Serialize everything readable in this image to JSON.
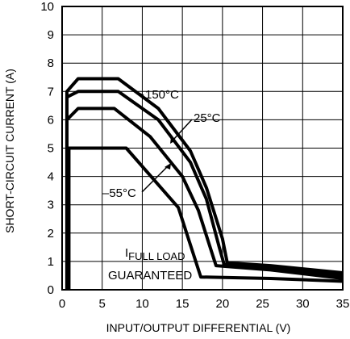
{
  "chart_data": {
    "type": "line",
    "title": "",
    "xlabel": "INPUT/OUTPUT DIFFERENTIAL (V)",
    "ylabel": "SHORT-CIRCUIT CURRENT (A)",
    "xlim": [
      0,
      35
    ],
    "ylim": [
      0,
      10
    ],
    "xticks": [
      "0",
      "5",
      "10",
      "15",
      "20",
      "25",
      "30",
      "35"
    ],
    "yticks": [
      "0",
      "1",
      "2",
      "3",
      "4",
      "5",
      "6",
      "7",
      "8",
      "9",
      "10"
    ],
    "grid": true,
    "series": [
      {
        "name": "150°C",
        "x": [
          0.6,
          0.6,
          2.0,
          7.0,
          12.0,
          16.0,
          18.0,
          20.0,
          20.6,
          26,
          35
        ],
        "y": [
          0,
          7.0,
          7.45,
          7.45,
          6.4,
          4.9,
          3.6,
          1.8,
          0.95,
          0.85,
          0.6
        ]
      },
      {
        "name": "25°C",
        "x": [
          0.6,
          0.6,
          2.0,
          7.0,
          12.0,
          16.0,
          18.0,
          19.6,
          20.2,
          26,
          35
        ],
        "y": [
          0,
          6.8,
          7.0,
          7.0,
          6.0,
          4.5,
          3.2,
          1.5,
          0.9,
          0.75,
          0.5
        ]
      },
      {
        "name": "–55°C",
        "x": [
          0.6,
          0.6,
          2.0,
          6.5,
          11.0,
          15.0,
          17.0,
          18.8,
          19.2,
          26,
          35
        ],
        "y": [
          0,
          6.0,
          6.4,
          6.4,
          5.4,
          4.0,
          2.8,
          1.2,
          0.85,
          0.7,
          0.4
        ]
      },
      {
        "name": "GUARANTEED",
        "x": [
          0.85,
          0.85,
          0.85,
          8.0,
          14.5,
          17.3,
          26,
          35
        ],
        "y": [
          0,
          5.0,
          5.0,
          5.0,
          2.9,
          0.45,
          0.4,
          0.3
        ]
      }
    ],
    "annotations": {
      "label_150": "150°C",
      "label_25": "25°C",
      "label_m55": "–55°C",
      "label_full_load_main": "I",
      "label_full_load_sub": "FULL LOAD",
      "label_guaranteed": "GUARANTEED"
    }
  }
}
